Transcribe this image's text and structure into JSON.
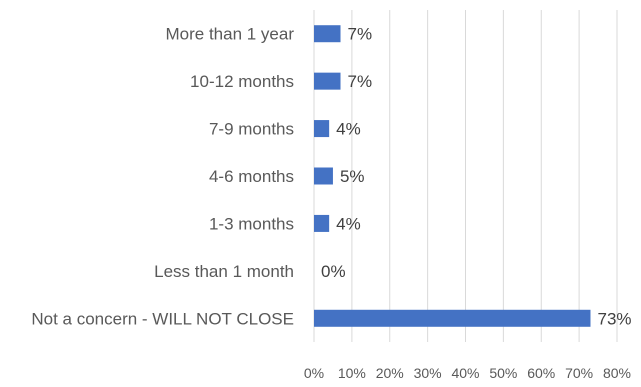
{
  "chart_data": {
    "type": "bar",
    "orientation": "horizontal",
    "categories": [
      "More than 1 year",
      "10-12 months",
      "7-9 months",
      "4-6 months",
      "1-3 months",
      "Less than 1 month",
      "Not a concern - WILL NOT CLOSE"
    ],
    "values": [
      7,
      7,
      4,
      5,
      4,
      0,
      73
    ],
    "data_labels": [
      "7%",
      "7%",
      "4%",
      "5%",
      "4%",
      "0%",
      "73%"
    ],
    "x_ticks": [
      "0%",
      "10%",
      "20%",
      "30%",
      "40%",
      "50%",
      "60%",
      "70%",
      "80%"
    ],
    "xlim": [
      0,
      80
    ],
    "title": "",
    "xlabel": "",
    "ylabel": "",
    "grid": "vertical",
    "legend": "none",
    "colors": {
      "bar": "#4472C4"
    }
  }
}
